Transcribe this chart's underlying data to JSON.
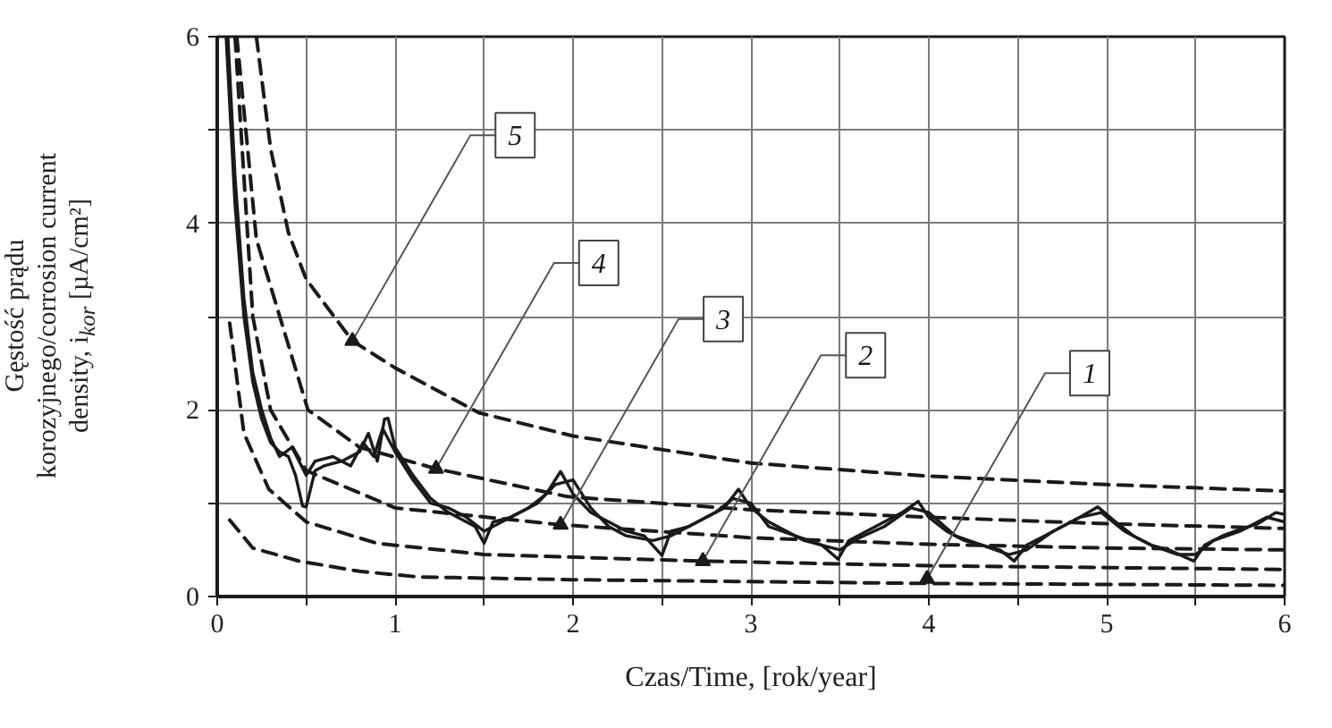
{
  "chart_data": {
    "type": "line",
    "xlabel": "Czas/Time, [rok/year]",
    "ylabel": "Gęstość prądu\nkorozyjnego/corrosion current\ndensity, i$_{kor}$ [µA/cm²]",
    "xlim": [
      0,
      6
    ],
    "ylim": [
      0,
      6
    ],
    "xticks": [
      0,
      {
        "value": 0.5,
        "label": null
      },
      1,
      {
        "value": 1.5,
        "label": null
      },
      2,
      {
        "value": 2.5,
        "label": null
      },
      3,
      {
        "value": 3.5,
        "label": null
      },
      4,
      {
        "value": 4.5,
        "label": null
      },
      5,
      {
        "value": 5.5,
        "label": null
      },
      6
    ],
    "yticks": [
      0,
      {
        "value": 1,
        "label": null
      },
      2,
      {
        "value": 3,
        "label": null
      },
      4,
      {
        "value": 5,
        "label": null
      },
      6
    ],
    "grid": true,
    "series": [
      {
        "color": "#1a1a1a",
        "line_style": "solid",
        "x": [
          0.05,
          0.1,
          0.15,
          0.2,
          0.25,
          0.3,
          0.35,
          0.4,
          0.44,
          0.48,
          0.5,
          0.55,
          0.6,
          0.7,
          0.8,
          0.85,
          0.9,
          0.94,
          0.96,
          1.0,
          1.1,
          1.2,
          1.3,
          1.4,
          1.45,
          1.5,
          1.55,
          1.65,
          1.75,
          1.85,
          1.93,
          2.0,
          2.1,
          2.2,
          2.3,
          2.4,
          2.5,
          2.55,
          2.65,
          2.75,
          2.85,
          2.93,
          3.0,
          3.1,
          3.2,
          3.3,
          3.4,
          3.49,
          3.55,
          3.65,
          3.75,
          3.85,
          3.94,
          4.0,
          4.1,
          4.2,
          4.3,
          4.4,
          4.48,
          4.55,
          4.65,
          4.75,
          4.85,
          4.95,
          5.05,
          5.15,
          5.25,
          5.35,
          5.49,
          5.55,
          5.65,
          5.75,
          5.85,
          5.95,
          6.0
        ],
        "values": [
          6,
          4.2,
          3.0,
          2.3,
          1.9,
          1.65,
          1.55,
          1.5,
          1.3,
          0.97,
          0.96,
          1.35,
          1.4,
          1.45,
          1.55,
          1.75,
          1.45,
          1.9,
          1.91,
          1.6,
          1.3,
          1.05,
          0.9,
          0.8,
          0.75,
          0.57,
          0.8,
          0.85,
          0.95,
          1.1,
          1.34,
          1.1,
          0.9,
          0.8,
          0.7,
          0.65,
          0.44,
          0.7,
          0.75,
          0.85,
          0.95,
          1.15,
          0.95,
          0.8,
          0.7,
          0.6,
          0.55,
          0.4,
          0.6,
          0.7,
          0.8,
          0.9,
          1.02,
          0.85,
          0.7,
          0.6,
          0.55,
          0.5,
          0.38,
          0.55,
          0.65,
          0.75,
          0.85,
          0.96,
          0.8,
          0.65,
          0.55,
          0.5,
          0.38,
          0.55,
          0.65,
          0.72,
          0.78,
          0.9,
          0.88
        ]
      },
      {
        "color": "#1a1a1a",
        "line_style": "solid",
        "x": [
          0.06,
          0.1,
          0.15,
          0.2,
          0.25,
          0.3,
          0.35,
          0.42,
          0.5,
          0.55,
          0.65,
          0.75,
          0.82,
          0.88,
          0.93,
          1.0,
          1.1,
          1.2,
          1.3,
          1.4,
          1.5,
          1.6,
          1.7,
          1.8,
          1.9,
          2.0,
          2.1,
          2.2,
          2.3,
          2.45,
          2.55,
          2.7,
          2.8,
          2.9,
          3.0,
          3.1,
          3.25,
          3.4,
          3.5,
          3.6,
          3.75,
          3.9,
          4.0,
          4.15,
          4.3,
          4.45,
          4.55,
          4.7,
          4.85,
          4.97,
          5.1,
          5.25,
          5.4,
          5.5,
          5.6,
          5.75,
          5.9,
          6.0
        ],
        "values": [
          6,
          4.5,
          3.2,
          2.4,
          2.0,
          1.7,
          1.5,
          1.6,
          1.3,
          1.45,
          1.5,
          1.4,
          1.65,
          1.5,
          1.8,
          1.55,
          1.25,
          1.0,
          0.95,
          0.85,
          0.7,
          0.8,
          0.9,
          1.0,
          1.2,
          1.25,
          0.95,
          0.75,
          0.65,
          0.6,
          0.65,
          0.8,
          0.9,
          1.05,
          1.0,
          0.75,
          0.65,
          0.55,
          0.5,
          0.62,
          0.75,
          0.95,
          0.9,
          0.65,
          0.55,
          0.45,
          0.5,
          0.7,
          0.85,
          0.9,
          0.7,
          0.55,
          0.45,
          0.45,
          0.6,
          0.7,
          0.85,
          0.8
        ]
      },
      {
        "color": "#1a1a1a",
        "line_style": "dashed",
        "x": [
          0.07,
          0.2,
          0.46,
          0.8,
          1.13,
          2,
          3,
          4,
          5,
          6
        ],
        "values": [
          0.82,
          0.52,
          0.38,
          0.27,
          0.21,
          0.18,
          0.16,
          0.14,
          0.13,
          0.12
        ]
      },
      {
        "color": "#1a1a1a",
        "line_style": "dashed",
        "x": [
          0.07,
          0.15,
          0.29,
          0.5,
          0.9,
          1.5,
          2.73,
          4,
          5,
          6
        ],
        "values": [
          2.93,
          1.75,
          1.15,
          0.8,
          0.57,
          0.45,
          0.38,
          0.33,
          0.31,
          0.29
        ]
      },
      {
        "color": "#1a1a1a",
        "line_style": "dashed",
        "x": [
          0.1,
          0.2,
          0.3,
          0.5,
          1,
          1.93,
          3,
          4,
          5,
          6
        ],
        "values": [
          6,
          3.0,
          2.0,
          1.35,
          0.95,
          0.77,
          0.63,
          0.56,
          0.52,
          0.5
        ]
      },
      {
        "color": "#1a1a1a",
        "line_style": "dashed",
        "x": [
          0.11,
          0.22,
          0.51,
          0.8,
          1.23,
          1.97,
          3,
          4,
          5,
          6
        ],
        "values": [
          6,
          3.83,
          2.0,
          1.6,
          1.37,
          1.07,
          0.93,
          0.85,
          0.78,
          0.73
        ]
      },
      {
        "color": "#1a1a1a",
        "line_style": "dashed",
        "x": [
          0.22,
          0.3,
          0.4,
          0.5,
          0.76,
          1,
          1.47,
          2,
          3,
          4,
          5,
          6
        ],
        "values": [
          6,
          4.8,
          3.9,
          3.4,
          2.74,
          2.45,
          1.97,
          1.72,
          1.43,
          1.29,
          1.2,
          1.13
        ]
      }
    ],
    "annotations": [
      {
        "text": "1",
        "x": 3.99,
        "y": 0.19
      },
      {
        "text": "2",
        "x": 2.73,
        "y": 0.38
      },
      {
        "text": "3",
        "x": 1.93,
        "y": 0.77
      },
      {
        "text": "4",
        "x": 1.23,
        "y": 1.37
      },
      {
        "text": "5",
        "x": 0.76,
        "y": 2.74
      }
    ]
  }
}
